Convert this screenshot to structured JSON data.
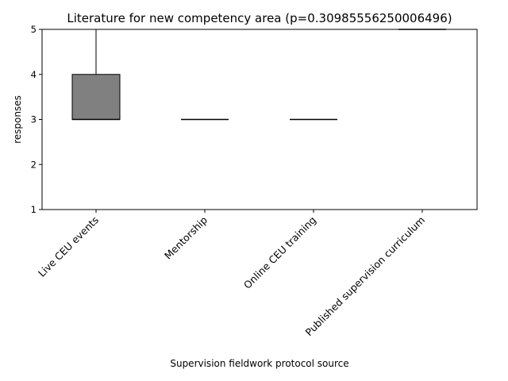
{
  "chart_data": {
    "type": "box",
    "title": "Literature for new competency area (p=0.30985556250006496)",
    "xlabel": "Supervision fieldwork protocol source",
    "ylabel": "responses",
    "ylim": [
      1,
      5
    ],
    "yticks": [
      "1",
      "2",
      "3",
      "4",
      "5"
    ],
    "grid": false,
    "box_color": "#808080",
    "categories": [
      "Live CEU events",
      "Mentorship",
      "Online CEU training",
      "Published supervision curriculum"
    ],
    "boxes": [
      {
        "category": "Live CEU events",
        "whisker_low": 3,
        "q1": 3,
        "median": 3,
        "q3": 4,
        "whisker_high": 5
      },
      {
        "category": "Mentorship",
        "whisker_low": 3,
        "q1": 3,
        "median": 3,
        "q3": 3,
        "whisker_high": 3
      },
      {
        "category": "Online CEU training",
        "whisker_low": 3,
        "q1": 3,
        "median": 3,
        "q3": 3,
        "whisker_high": 3
      },
      {
        "category": "Published supervision curriculum",
        "whisker_low": 5,
        "q1": 5,
        "median": 5,
        "q3": 5,
        "whisker_high": 5
      }
    ]
  }
}
